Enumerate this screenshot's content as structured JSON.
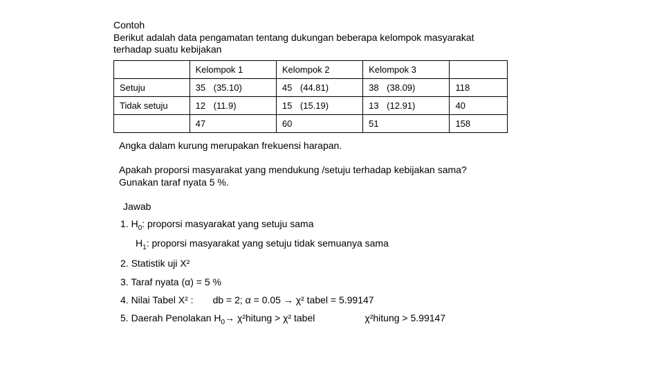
{
  "intro": {
    "line1": "Contoh",
    "line2": "Berikut adalah data pengamatan tentang dukungan beberapa kelompok masyarakat",
    "line3": "terhadap suatu kebijakan"
  },
  "table": {
    "head": {
      "c1": "",
      "c2": "Kelompok 1",
      "c3": "Kelompok 2",
      "c4": "Kelompok 3",
      "c5": ""
    },
    "r1": {
      "label": "Setuju",
      "g1_obs": "35",
      "g1_exp": "(35.10)",
      "g2_obs": "45",
      "g2_exp": "(44.81)",
      "g3_obs": "38",
      "g3_exp": "(38.09)",
      "total": "118"
    },
    "r2": {
      "label": "Tidak setuju",
      "g1_obs": "12",
      "g1_exp": "(11.9)",
      "g2_obs": "15",
      "g2_exp": "(15.19)",
      "g3_obs": "13",
      "g3_exp": "(12.91)",
      "total": " 40"
    },
    "r3": {
      "label": "",
      "g1": "47",
      "g2": "60",
      "g3": "51",
      "total": "158"
    }
  },
  "note": "Angka dalam kurung merupakan frekuensi harapan.",
  "question": {
    "line1": "Apakah proporsi masyarakat yang mendukung /setuju terhadap kebijakan sama?",
    "line2": "Gunakan taraf nyata 5 %."
  },
  "answer_title": "Jawab",
  "steps": {
    "s1a": "1. H",
    "s1a_sub": "0",
    "s1a_rest": " : proporsi masyarakat yang setuju sama",
    "s1b": "H",
    "s1b_sub": "1",
    "s1b_rest": " : proporsi masyarakat yang setuju tidak semuanya sama",
    "s2": "2. Statistik uji X²",
    "s3": "3. Taraf nyata (α) = 5 %",
    "s4a": "4. Nilai Tabel X² :",
    "s4b": "db = 2; α = 0.05 → χ² tabel = 5.99147",
    "s5a": "5. Daerah Penolakan H",
    "s5a_sub": "0",
    "s5a_rest": " → χ²hitung > χ² tabel",
    "s5b": "χ²hitung > 5.99147"
  }
}
